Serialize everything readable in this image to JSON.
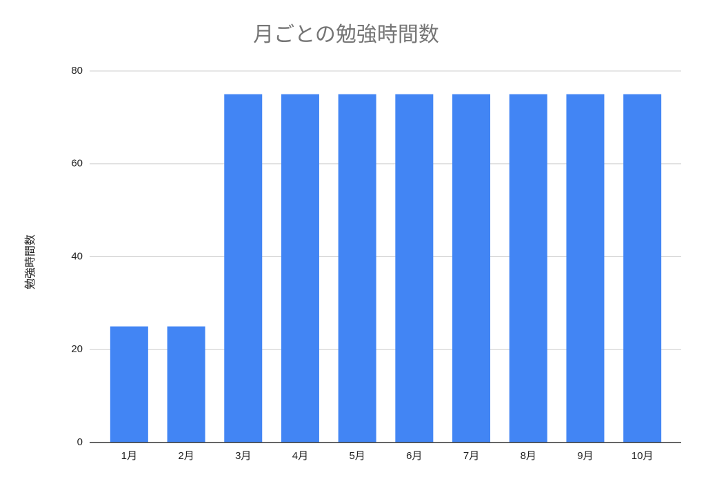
{
  "chart_data": {
    "type": "bar",
    "title": "月ごとの勉強時間数",
    "y_label": "勉強時間数",
    "categories": [
      "1月",
      "2月",
      "3月",
      "4月",
      "5月",
      "6月",
      "7月",
      "8月",
      "9月",
      "10月"
    ],
    "values": [
      25,
      25,
      75,
      75,
      75,
      75,
      75,
      75,
      75,
      75
    ],
    "color": "#4285f4",
    "ylim": [
      0,
      80
    ],
    "yticks": [
      0,
      20,
      40,
      60,
      80
    ],
    "grid": true
  }
}
